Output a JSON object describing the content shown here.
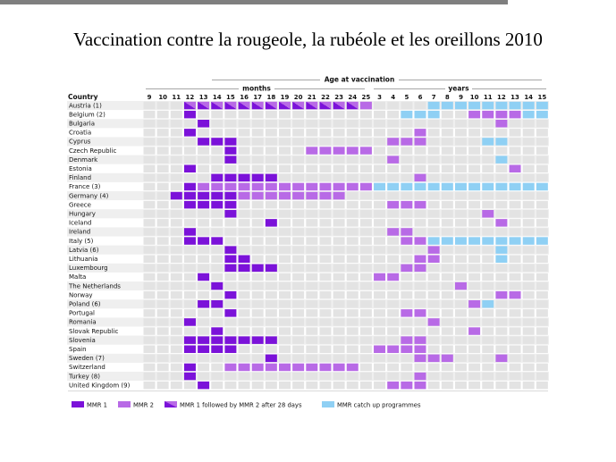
{
  "slide": {
    "title": "Vaccination contre la rougeole, la rubéole et les oreillons 2010"
  },
  "chart_data": {
    "type": "table",
    "header": "Age at vaccination",
    "months_label": "months",
    "years_label": "years",
    "country_header": "Country",
    "columns": [
      {
        "label": "9",
        "unit": "months"
      },
      {
        "label": "10",
        "unit": "months"
      },
      {
        "label": "11",
        "unit": "months"
      },
      {
        "label": "12",
        "unit": "months"
      },
      {
        "label": "13",
        "unit": "months"
      },
      {
        "label": "14",
        "unit": "months"
      },
      {
        "label": "15",
        "unit": "months"
      },
      {
        "label": "16",
        "unit": "months"
      },
      {
        "label": "17",
        "unit": "months"
      },
      {
        "label": "18",
        "unit": "months"
      },
      {
        "label": "19",
        "unit": "months"
      },
      {
        "label": "20",
        "unit": "months"
      },
      {
        "label": "21",
        "unit": "months"
      },
      {
        "label": "22",
        "unit": "months"
      },
      {
        "label": "23",
        "unit": "months"
      },
      {
        "label": "24",
        "unit": "months"
      },
      {
        "label": "25",
        "unit": "months"
      },
      {
        "label": "3",
        "unit": "years"
      },
      {
        "label": "4",
        "unit": "years"
      },
      {
        "label": "5",
        "unit": "years"
      },
      {
        "label": "6",
        "unit": "years"
      },
      {
        "label": "7",
        "unit": "years"
      },
      {
        "label": "8",
        "unit": "years"
      },
      {
        "label": "9",
        "unit": "years"
      },
      {
        "label": "10",
        "unit": "years"
      },
      {
        "label": "11",
        "unit": "years"
      },
      {
        "label": "12",
        "unit": "years"
      },
      {
        "label": "13",
        "unit": "years"
      },
      {
        "label": "14",
        "unit": "years"
      },
      {
        "label": "15",
        "unit": "years"
      }
    ],
    "legend": [
      {
        "key": "m1",
        "label": "MMR 1",
        "color": "#7b12d9"
      },
      {
        "key": "m2",
        "label": "MMR 2",
        "color": "#b86ae6"
      },
      {
        "key": "mf",
        "label": "MMR 1 followed by MMR 2 after 28 days",
        "color": "#7b12d9"
      },
      {
        "key": "cu",
        "label": "MMR catch up programmes",
        "color": "#8fd0f4"
      }
    ],
    "colors": {
      "empty": "#e3e3e3",
      "stripe": "#efefef"
    },
    "rows": [
      {
        "country": "Austria (1)",
        "cells": {
          "mf": [
            3,
            4,
            5,
            6,
            7,
            8,
            9,
            10,
            11,
            12,
            13,
            14,
            15
          ],
          "m2": [
            16
          ],
          "cu": [
            21,
            22,
            23,
            24,
            25,
            26,
            27,
            28,
            29
          ]
        }
      },
      {
        "country": "Belgium (2)",
        "cells": {
          "m1": [
            3
          ],
          "cu": [
            19,
            20,
            21,
            28,
            29
          ],
          "m2": [
            24,
            25,
            26,
            27
          ]
        }
      },
      {
        "country": "Bulgaria",
        "cells": {
          "m1": [
            4
          ],
          "m2": [
            26
          ]
        }
      },
      {
        "country": "Croatia",
        "cells": {
          "m1": [
            3
          ],
          "m2": [
            20
          ]
        }
      },
      {
        "country": "Cyprus",
        "cells": {
          "m1": [
            4,
            5,
            6
          ],
          "m2": [
            18,
            19,
            20
          ],
          "cu": [
            25,
            26
          ]
        }
      },
      {
        "country": "Czech Republic",
        "cells": {
          "m1": [
            6
          ],
          "m2": [
            12,
            13,
            14,
            15,
            16
          ]
        }
      },
      {
        "country": "Denmark",
        "cells": {
          "m1": [
            6
          ],
          "m2": [
            18
          ],
          "cu": [
            26
          ]
        }
      },
      {
        "country": "Estonia",
        "cells": {
          "m1": [
            3
          ],
          "m2": [
            27
          ]
        }
      },
      {
        "country": "Finland",
        "cells": {
          "m1": [
            5,
            6,
            7,
            8,
            9
          ],
          "m2": [
            20
          ]
        }
      },
      {
        "country": "France (3)",
        "cells": {
          "m1": [
            3
          ],
          "m2": [
            4,
            5,
            6,
            7,
            8,
            9,
            10,
            11,
            12,
            13,
            14,
            15,
            16
          ],
          "cu": [
            17,
            18,
            19,
            20,
            21,
            22,
            23,
            24,
            25,
            26,
            27,
            28,
            29
          ]
        }
      },
      {
        "country": "Germany (4)",
        "cells": {
          "m1": [
            2,
            3,
            4,
            5,
            6
          ],
          "m2": [
            7,
            8,
            9,
            10,
            11,
            12,
            13,
            14
          ]
        }
      },
      {
        "country": "Greece",
        "cells": {
          "m1": [
            3,
            4,
            5,
            6
          ],
          "m2": [
            18,
            19,
            20
          ]
        }
      },
      {
        "country": "Hungary",
        "cells": {
          "m1": [
            6
          ],
          "m2": [
            25
          ]
        }
      },
      {
        "country": "Iceland",
        "cells": {
          "m1": [
            9
          ],
          "m2": [
            26
          ]
        }
      },
      {
        "country": "Ireland",
        "cells": {
          "m1": [
            3
          ],
          "m2": [
            18,
            19
          ]
        }
      },
      {
        "country": "Italy (5)",
        "cells": {
          "m1": [
            3,
            4,
            5
          ],
          "m2": [
            19,
            20
          ],
          "cu": [
            21,
            22,
            23,
            24,
            25,
            26,
            27,
            28,
            29
          ]
        }
      },
      {
        "country": "Latvia (6)",
        "cells": {
          "m1": [
            6
          ],
          "m2": [
            21
          ],
          "cu": [
            26
          ]
        }
      },
      {
        "country": "Lithuania",
        "cells": {
          "m1": [
            6,
            7
          ],
          "m2": [
            20,
            21
          ],
          "cu": [
            26
          ]
        }
      },
      {
        "country": "Luxembourg",
        "cells": {
          "m1": [
            6,
            7,
            8,
            9
          ],
          "m2": [
            19,
            20
          ]
        }
      },
      {
        "country": "Malta",
        "cells": {
          "m1": [
            4
          ],
          "m2": [
            17,
            18
          ]
        }
      },
      {
        "country": "The Netherlands",
        "cells": {
          "m1": [
            5
          ],
          "m2": [
            23
          ]
        }
      },
      {
        "country": "Norway",
        "cells": {
          "m1": [
            6
          ],
          "m2": [
            26,
            27
          ]
        }
      },
      {
        "country": "Poland (6)",
        "cells": {
          "m1": [
            4,
            5
          ],
          "m2": [
            24
          ],
          "cu": [
            25
          ]
        }
      },
      {
        "country": "Portugal",
        "cells": {
          "m1": [
            6
          ],
          "m2": [
            19,
            20
          ]
        }
      },
      {
        "country": "Romania",
        "cells": {
          "m1": [
            3
          ],
          "m2": [
            21
          ]
        }
      },
      {
        "country": "Slovak Republic",
        "cells": {
          "m1": [
            5
          ],
          "m2": [
            24
          ]
        }
      },
      {
        "country": "Slovenia",
        "cells": {
          "m1": [
            3,
            4,
            5,
            6,
            7,
            8,
            9
          ],
          "m2": [
            19,
            20
          ]
        }
      },
      {
        "country": "Spain",
        "cells": {
          "m1": [
            3,
            4,
            5,
            6
          ],
          "m2": [
            17,
            18,
            19,
            20
          ]
        }
      },
      {
        "country": "Sweden (7)",
        "cells": {
          "m1": [
            9
          ],
          "m2": [
            20,
            21,
            22,
            26
          ]
        }
      },
      {
        "country": "Switzerland",
        "cells": {
          "m1": [
            3
          ],
          "m2": [
            6,
            7,
            8,
            9,
            10,
            11,
            12,
            13,
            14,
            15
          ]
        }
      },
      {
        "country": "Turkey (8)",
        "cells": {
          "m1": [
            3
          ],
          "m2": [
            20
          ]
        }
      },
      {
        "country": "United Kingdom (9)",
        "cells": {
          "m1": [
            4
          ],
          "m2": [
            18,
            19,
            20
          ]
        }
      }
    ]
  }
}
